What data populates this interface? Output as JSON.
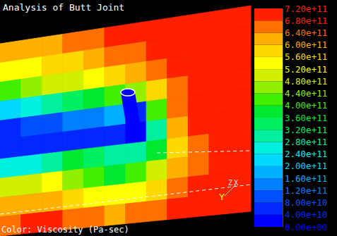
{
  "chart_data": {
    "type": "heatmap",
    "title": "Analysis of Butt Joint",
    "colorbar_label": "Color: Viscosity (Pa-sec)",
    "annotations": [
      "Y",
      "Z",
      "X"
    ],
    "tool_value": 10000000000.0,
    "cells": [
      [
        600000000000.0,
        600000000000.0,
        620000000000.0,
        640000000000.0,
        660000000000.0,
        680000000000.0,
        700000000000.0,
        700000000000.0,
        710000000000.0,
        710000000000.0,
        710000000000.0,
        710000000000.0
      ],
      [
        520000000000.0,
        540000000000.0,
        560000000000.0,
        580000000000.0,
        620000000000.0,
        640000000000.0,
        660000000000.0,
        700000000000.0,
        710000000000.0,
        710000000000.0,
        710000000000.0,
        710000000000.0
      ],
      [
        400000000000.0,
        440000000000.0,
        480000000000.0,
        500000000000.0,
        540000000000.0,
        580000000000.0,
        600000000000.0,
        660000000000.0,
        700000000000.0,
        710000000000.0,
        710000000000.0,
        710000000000.0
      ],
      [
        200000000000.0,
        240000000000.0,
        280000000000.0,
        320000000000.0,
        360000000000.0,
        400000000000.0,
        440000000000.0,
        560000000000.0,
        660000000000.0,
        700000000000.0,
        710000000000.0,
        710000000000.0
      ],
      [
        60000000000.0,
        80000000000.0,
        100000000000.0,
        120000000000.0,
        140000000000.0,
        160000000000.0,
        40000000000.0,
        400000000000.0,
        640000000000.0,
        700000000000.0,
        710000000000.0,
        710000000000.0
      ],
      [
        40000000000.0,
        40000000000.0,
        40000000000.0,
        60000000000.0,
        60000000000.0,
        40000000000.0,
        20000000000.0,
        300000000000.0,
        620000000000.0,
        680000000000.0,
        710000000000.0,
        710000000000.0
      ],
      [
        240000000000.0,
        260000000000.0,
        300000000000.0,
        360000000000.0,
        340000000000.0,
        300000000000.0,
        300000000000.0,
        380000000000.0,
        580000000000.0,
        660000000000.0,
        700000000000.0,
        710000000000.0
      ],
      [
        480000000000.0,
        500000000000.0,
        520000000000.0,
        460000000000.0,
        400000000000.0,
        380000000000.0,
        400000000000.0,
        480000000000.0,
        600000000000.0,
        660000000000.0,
        700000000000.0,
        710000000000.0
      ],
      [
        600000000000.0,
        620000000000.0,
        620000000000.0,
        580000000000.0,
        540000000000.0,
        520000000000.0,
        540000000000.0,
        580000000000.0,
        640000000000.0,
        680000000000.0,
        700000000000.0,
        710000000000.0
      ],
      [
        660000000000.0,
        680000000000.0,
        680000000000.0,
        660000000000.0,
        640000000000.0,
        620000000000.0,
        640000000000.0,
        660000000000.0,
        680000000000.0,
        700000000000.0,
        710000000000.0,
        710000000000.0
      ]
    ],
    "colorbar": {
      "range": [
        0,
        720000000000.0
      ],
      "ticks": [
        {
          "value": 0,
          "label": "0.00e+00"
        },
        {
          "value": 40000000000.0,
          "label": "4.00e+10"
        },
        {
          "value": 80000000000.0,
          "label": "8.00e+10"
        },
        {
          "value": 120000000000.0,
          "label": "1.20e+11"
        },
        {
          "value": 160000000000.0,
          "label": "1.60e+11"
        },
        {
          "value": 200000000000.0,
          "label": "2.00e+11"
        },
        {
          "value": 240000000000.0,
          "label": "2.40e+11"
        },
        {
          "value": 280000000000.0,
          "label": "2.80e+11"
        },
        {
          "value": 320000000000.0,
          "label": "3.20e+11"
        },
        {
          "value": 360000000000.0,
          "label": "3.60e+11"
        },
        {
          "value": 400000000000.0,
          "label": "4.00e+11"
        },
        {
          "value": 440000000000.0,
          "label": "4.40e+11"
        },
        {
          "value": 480000000000.0,
          "label": "4.80e+11"
        },
        {
          "value": 520000000000.0,
          "label": "5.20e+11"
        },
        {
          "value": 560000000000.0,
          "label": "5.60e+11"
        },
        {
          "value": 600000000000.0,
          "label": "6.00e+11"
        },
        {
          "value": 640000000000.0,
          "label": "6.40e+11"
        },
        {
          "value": 680000000000.0,
          "label": "6.80e+11"
        },
        {
          "value": 720000000000.0,
          "label": "7.20e+11"
        }
      ],
      "colors": [
        "#0000ff",
        "#0028ff",
        "#0050ff",
        "#0080ff",
        "#00b0ff",
        "#00d8ff",
        "#00f0e0",
        "#00f0a0",
        "#00f060",
        "#00e830",
        "#40f000",
        "#90f000",
        "#d0f000",
        "#ffff00",
        "#ffd800",
        "#ffb000",
        "#ff7000",
        "#ff2000"
      ]
    }
  }
}
